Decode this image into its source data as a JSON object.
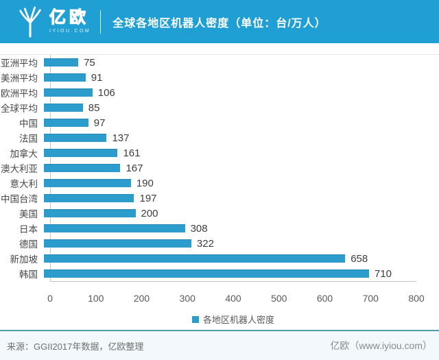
{
  "header": {
    "brand_cn": "亿欧",
    "brand_sub": "IYIOU·COM",
    "title": "全球各地区机器人密度（单位：台/万人）"
  },
  "chart_data": {
    "type": "bar",
    "orientation": "horizontal",
    "title": "全球各地区机器人密度（单位：台/万人）",
    "categories": [
      "亚洲平均",
      "美洲平均",
      "欧洲平均",
      "全球平均",
      "中国",
      "法国",
      "加拿大",
      "澳大利亚",
      "意大利",
      "中国台湾",
      "美国",
      "日本",
      "德国",
      "新加坡",
      "韩国"
    ],
    "values": [
      75,
      91,
      106,
      85,
      97,
      137,
      161,
      167,
      190,
      197,
      200,
      308,
      322,
      658,
      710
    ],
    "xlim": [
      0,
      800
    ],
    "xticks": [
      0,
      100,
      200,
      300,
      400,
      500,
      600,
      700,
      800
    ],
    "xlabel": "",
    "ylabel": "",
    "grid": false,
    "legend": "各地区机器人密度",
    "legend_position": "bottom-center",
    "bar_color": "#2b9ccb",
    "value_labels_shown": true
  },
  "footer": {
    "source": "来源：GGII2017年数据，亿欧整理",
    "site": "亿欧（www.iyiou.com）"
  },
  "colors": {
    "header_bg": "#1f9fd4",
    "bar": "#2b9ccb",
    "axis_line": "#c2c2c2",
    "divider_teal": "#4d9da4",
    "footer_bg": "#f2f8fb",
    "value_text": "#3d3d3d",
    "tick_text": "#595959"
  }
}
